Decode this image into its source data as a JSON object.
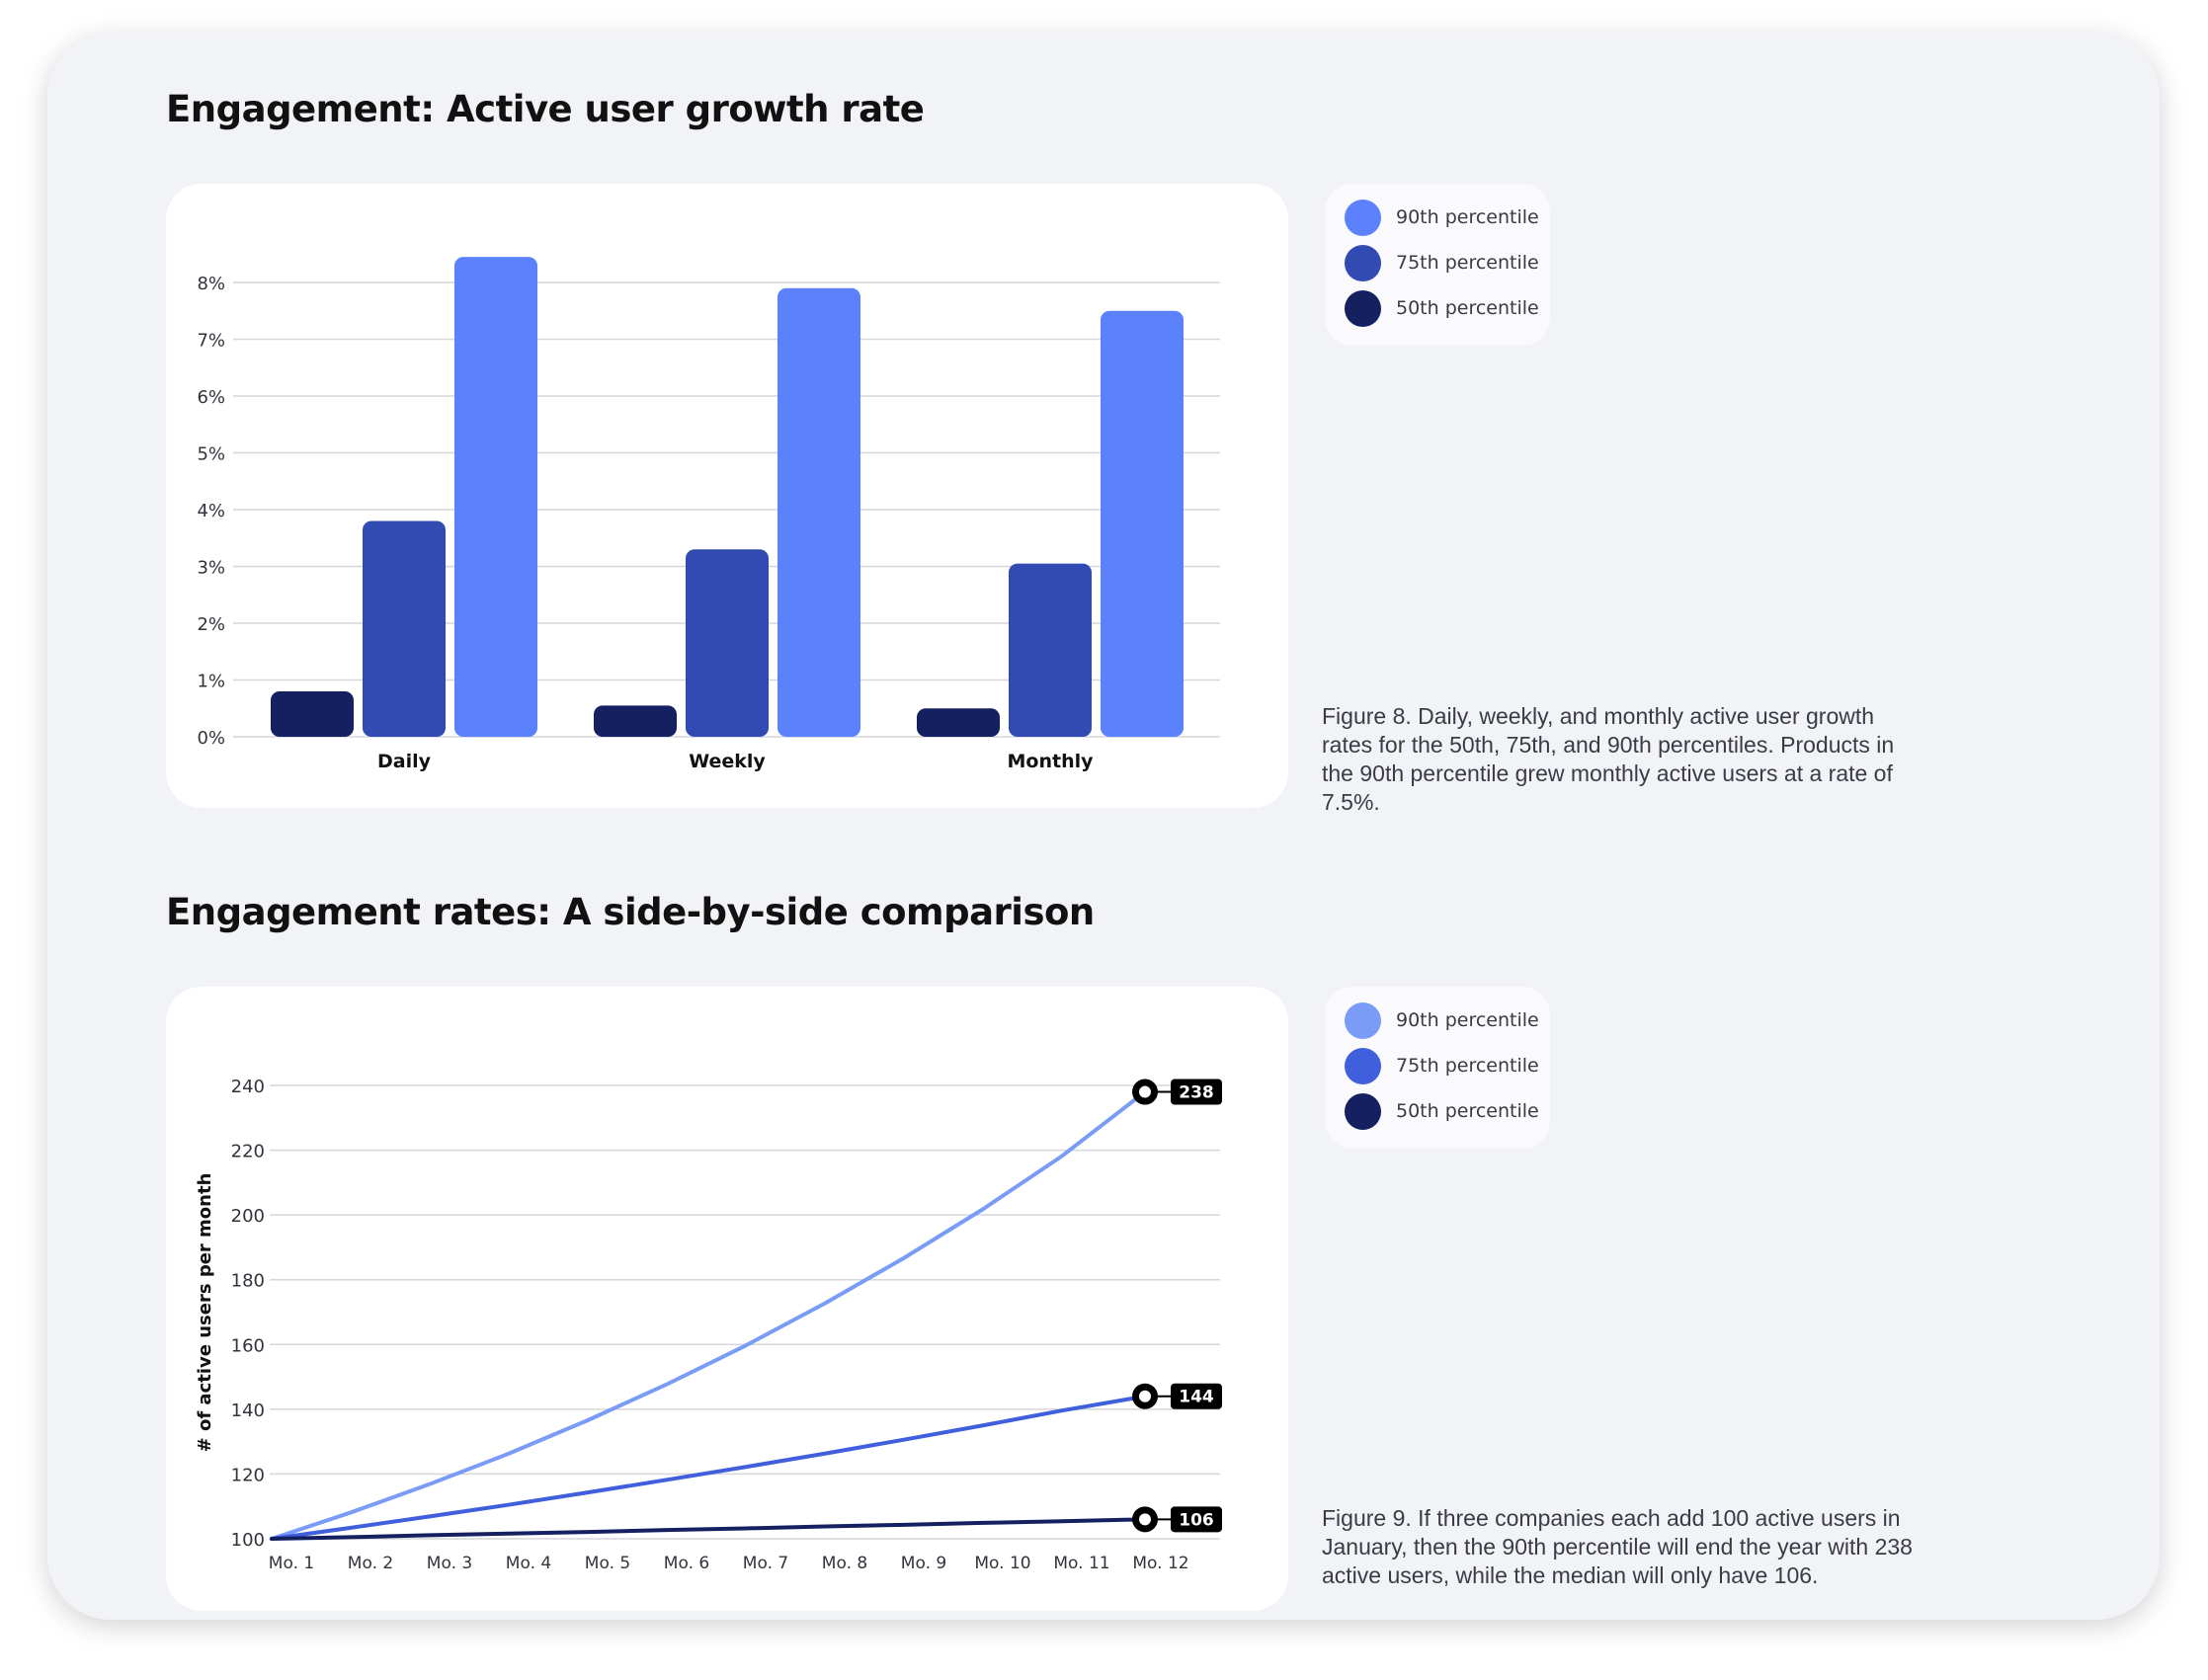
{
  "sections": [
    {
      "title": "Engagement: Active user growth rate",
      "caption": "Figure 8. Daily, weekly, and monthly active user growth rates for the 50th, 75th, and 90th percentiles. Products in the 90th percentile grew monthly active users at a rate of 7.5%.",
      "legend": [
        {
          "label": "90th percentile",
          "color": "#5b82fc"
        },
        {
          "label": "75th percentile",
          "color": "#324bb3"
        },
        {
          "label": "50th percentile",
          "color": "#142060"
        }
      ]
    },
    {
      "title": "Engagement rates: A side-by-side comparison",
      "caption": "Figure 9. If three companies each add 100 active users in January, then the 90th percentile will end the year with 238 active users, while the median will only have 106.",
      "legend": [
        {
          "label": "90th percentile",
          "color": "#7a9cf7"
        },
        {
          "label": "75th percentile",
          "color": "#3f5fdc"
        },
        {
          "label": "50th percentile",
          "color": "#142060"
        }
      ]
    }
  ],
  "chart_data": [
    {
      "type": "bar",
      "title": "Engagement: Active user growth rate",
      "categories": [
        "Daily",
        "Weekly",
        "Monthly"
      ],
      "series": [
        {
          "name": "50th percentile",
          "color": "#142060",
          "values": [
            0.8,
            0.55,
            0.5
          ]
        },
        {
          "name": "75th percentile",
          "color": "#324bb3",
          "values": [
            3.8,
            3.3,
            3.05
          ]
        },
        {
          "name": "90th percentile",
          "color": "#5b82fc",
          "values": [
            8.45,
            7.9,
            7.5
          ]
        }
      ],
      "yticks": [
        "0%",
        "1%",
        "2%",
        "3%",
        "4%",
        "5%",
        "6%",
        "7%",
        "8%"
      ],
      "ylim": [
        0,
        8
      ],
      "xlabel": "",
      "ylabel": "",
      "grid": true
    },
    {
      "type": "line",
      "title": "Engagement rates: A side-by-side comparison",
      "x": [
        "Mo. 1",
        "Mo. 2",
        "Mo. 3",
        "Mo. 4",
        "Mo. 5",
        "Mo. 6",
        "Mo. 7",
        "Mo. 8",
        "Mo. 9",
        "Mo. 10",
        "Mo. 11",
        "Mo. 12"
      ],
      "series": [
        {
          "name": "90th percentile",
          "color": "#7a9cf7",
          "values": [
            100,
            108.1,
            116.9,
            126.3,
            136.6,
            147.7,
            159.7,
            172.7,
            186.7,
            201.8,
            218.2,
            238
          ],
          "end_label": "238"
        },
        {
          "name": "75th percentile",
          "color": "#3f5fdc",
          "values": [
            100,
            103.4,
            106.9,
            110.5,
            114.3,
            118.2,
            122.2,
            126.3,
            130.6,
            135.0,
            139.6,
            144
          ],
          "end_label": "144"
        },
        {
          "name": "50th percentile",
          "color": "#142060",
          "values": [
            100,
            100.5,
            101.1,
            101.6,
            102.1,
            102.7,
            103.2,
            103.8,
            104.3,
            104.9,
            105.4,
            106
          ],
          "end_label": "106"
        }
      ],
      "yticks": [
        "100",
        "120",
        "140",
        "160",
        "180",
        "200",
        "220",
        "240"
      ],
      "ylim": [
        100,
        240
      ],
      "xlabel": "",
      "ylabel": "# of active users per month",
      "grid": true
    }
  ]
}
